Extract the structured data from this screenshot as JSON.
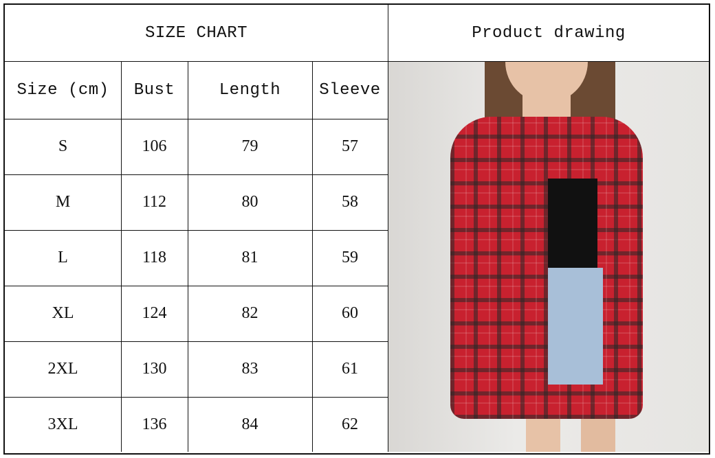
{
  "table": {
    "title": "SIZE CHART",
    "photo_header": "Product drawing",
    "columns": [
      "Size (cm)",
      "Bust",
      "Length",
      "Sleeve"
    ],
    "rows": [
      [
        "S",
        "106",
        "79",
        "57"
      ],
      [
        "M",
        "112",
        "80",
        "58"
      ],
      [
        "L",
        "118",
        "81",
        "59"
      ],
      [
        "XL",
        "124",
        "82",
        "60"
      ],
      [
        "2XL",
        "130",
        "83",
        "61"
      ],
      [
        "3XL",
        "136",
        "84",
        "62"
      ]
    ]
  },
  "photo": {
    "colors": {
      "shirt": "#c8212f",
      "background": "#e6e5e2"
    }
  }
}
